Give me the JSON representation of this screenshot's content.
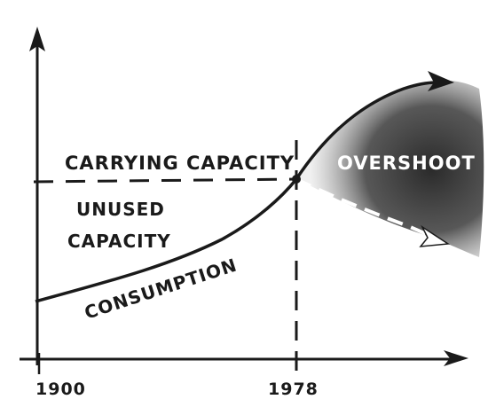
{
  "labels": {
    "carrying_capacity": "CARRYING CAPACITY",
    "unused_line1": "UNUSED",
    "unused_line2": "CAPACITY",
    "consumption": "CONSUMPTION",
    "overshoot": "OVERSHOOT"
  },
  "axis": {
    "x_ticks": [
      "1900",
      "1978"
    ]
  },
  "colors": {
    "ink": "#1a1a1a",
    "paper": "#ffffff",
    "shade": "#2b2b2b"
  }
}
